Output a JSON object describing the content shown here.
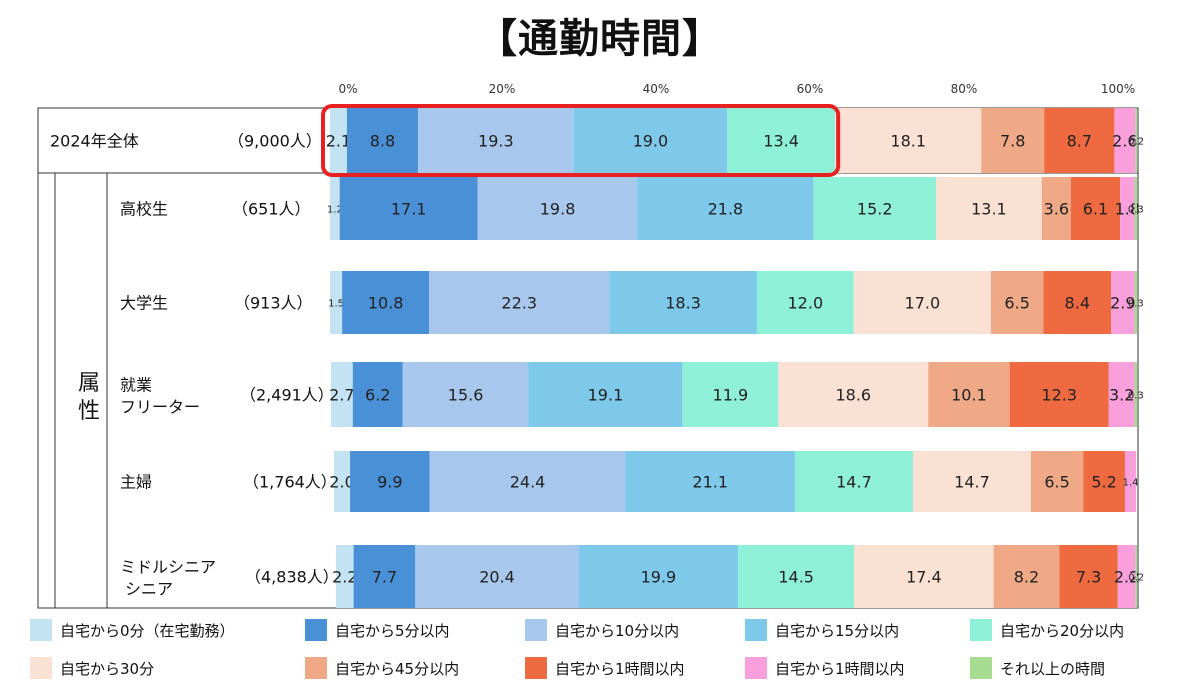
{
  "title": "【通勤時間】",
  "chart_data": {
    "type": "bar",
    "orientation": "horizontal-stacked-100",
    "title": "【通勤時間】",
    "xlim": [
      0,
      100
    ],
    "x_ticks": [
      "0%",
      "20%",
      "40%",
      "60%",
      "80%",
      "100%"
    ],
    "group_label": "属性",
    "categories": [
      {
        "name": "2024年全体",
        "n": "（9,000人）",
        "highlight": true
      },
      {
        "name": "高校生",
        "n": "（651人）"
      },
      {
        "name": "大学生",
        "n": "（913人）"
      },
      {
        "name": "就業\nフリーター",
        "n": "（2,491人）"
      },
      {
        "name": "主婦",
        "n": "（1,764人）"
      },
      {
        "name": "ミドルシニア\nシニア",
        "n": "（4,838人）"
      }
    ],
    "series": [
      {
        "name": "自宅から0分（在宅勤務）",
        "color": "#c3e3f2",
        "values": [
          2.1,
          1.2,
          1.5,
          2.7,
          2.0,
          2.2
        ]
      },
      {
        "name": "自宅から5分以内",
        "color": "#4a90d6",
        "values": [
          8.8,
          17.1,
          10.8,
          6.2,
          9.9,
          7.7
        ]
      },
      {
        "name": "自宅から10分以内",
        "color": "#a7c8ec",
        "values": [
          19.3,
          19.8,
          22.3,
          15.6,
          24.4,
          20.4
        ]
      },
      {
        "name": "自宅から15分以内",
        "color": "#7ec8ea",
        "values": [
          19.0,
          21.8,
          18.3,
          19.1,
          21.1,
          19.9
        ]
      },
      {
        "name": "自宅から20分以内",
        "color": "#8ef0d6",
        "values": [
          13.4,
          15.2,
          12.0,
          11.9,
          14.7,
          14.5
        ]
      },
      {
        "name": "自宅から30分",
        "color": "#fbe1d3",
        "values": [
          18.1,
          13.1,
          17.0,
          18.6,
          14.7,
          17.4
        ]
      },
      {
        "name": "自宅から45分以内",
        "color": "#f0a987",
        "values": [
          7.8,
          3.6,
          6.5,
          10.1,
          6.5,
          8.2
        ]
      },
      {
        "name": "自宅から1時間以内",
        "color": "#ef6a40",
        "values": [
          8.7,
          6.1,
          8.4,
          12.3,
          5.2,
          7.3
        ]
      },
      {
        "name": "自宅から1時間以内",
        "color": "#f9a0dc",
        "values": [
          2.6,
          1.8,
          2.9,
          3.2,
          1.4,
          2.2
        ]
      },
      {
        "name": "それ以上の時間",
        "color": "#a6dc92",
        "values": [
          0.2,
          0.3,
          0.3,
          0.3,
          null,
          0.2
        ]
      }
    ]
  }
}
